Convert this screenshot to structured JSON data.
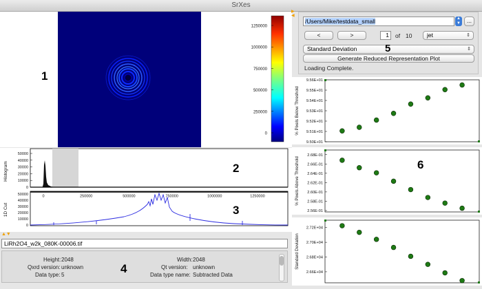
{
  "window": {
    "title": "SrXes"
  },
  "regions": {
    "image": "1",
    "histogram": "2",
    "cut": "3",
    "info": "4",
    "controls": "5",
    "plots": "6"
  },
  "colorbar": {
    "ticks": [
      "1250000",
      "1000000",
      "750000",
      "500000",
      "250000",
      "0"
    ],
    "colors": [
      "#00007f",
      "#0000ff",
      "#007fff",
      "#00ffff",
      "#7fff7f",
      "#ffff00",
      "#ff7f00",
      "#ff0000",
      "#7f0000"
    ]
  },
  "histogram": {
    "ylabel": "Histogram",
    "yticks": [
      "50000",
      "40000",
      "30000",
      "20000",
      "10000",
      "0"
    ]
  },
  "cut": {
    "ylabel": "1D Cut",
    "yticks": [
      "50000",
      "40000",
      "30000",
      "20000",
      "10000",
      "0"
    ],
    "xticks": [
      "0",
      "250000",
      "500000",
      "750000",
      "1000000",
      "1250000"
    ]
  },
  "controls": {
    "path": "/Users/Mike/testdata_small",
    "browse_label": "...",
    "prev_label": "<",
    "next_label": ">",
    "page_current": "1",
    "page_of": "of",
    "page_total": "10",
    "colormap": "jet",
    "measure": "Standard Deviation",
    "generate_label": "Generate Reduced Representation Plot",
    "status": "Loading Complete."
  },
  "filename": "LiRh2O4_w2k_080K-00006.tif",
  "info": {
    "height_label": "Height:",
    "height_value": "2048",
    "width_label": "Width:",
    "width_value": "2048",
    "qxrd_label": "Qxrd version:",
    "qxrd_value": "unknown",
    "qt_label": "Qt version:",
    "qt_value": "unknown",
    "dtype_label": "Data type:",
    "dtype_value": "5",
    "dtypename_label": "Data type name:",
    "dtypename_value": "Subtracted Data"
  },
  "chart_data": [
    {
      "type": "scatter",
      "ylabel": "% Pixels Below Threshold",
      "y_ticks": [
        "9.56E+01",
        "9.55E+01",
        "9.54E+01",
        "9.53E+01",
        "9.52E+01",
        "9.51E+01",
        "9.50E+01"
      ],
      "ylim": [
        95.0,
        95.6
      ],
      "xlim": [
        0,
        9
      ],
      "x": [
        1,
        2,
        3,
        4,
        5,
        6,
        7,
        8
      ],
      "values": [
        95.105,
        95.14,
        95.21,
        95.275,
        95.365,
        95.425,
        95.505,
        95.55
      ],
      "color": "#1e7a14"
    },
    {
      "type": "scatter",
      "ylabel": "% Pixels Above Threshold",
      "y_ticks": [
        "2.68E-01",
        "2.66E-01",
        "2.64E-01",
        "2.62E-01",
        "2.60E-01",
        "2.58E-01",
        "2.56E-01"
      ],
      "ylim": [
        0.2557,
        0.269
      ],
      "xlim": [
        0,
        9
      ],
      "x": [
        1,
        2,
        3,
        4,
        5,
        6,
        7,
        8
      ],
      "values": [
        0.2668,
        0.2652,
        0.2641,
        0.2623,
        0.2605,
        0.2588,
        0.2576,
        0.2565
      ],
      "color": "#1e7a14"
    },
    {
      "type": "scatter",
      "ylabel": "Standard Deviation",
      "y_ticks": [
        "2.72E+04",
        "2.70E+04",
        "2.68E+04",
        "2.66E+04"
      ],
      "ylim": [
        26450,
        27300
      ],
      "xlim": [
        0,
        9
      ],
      "x": [
        1,
        2,
        3,
        4,
        5,
        6,
        7,
        8
      ],
      "values": [
        27225,
        27135,
        27040,
        26930,
        26810,
        26700,
        26585,
        26480
      ],
      "color": "#1e7a14"
    }
  ]
}
